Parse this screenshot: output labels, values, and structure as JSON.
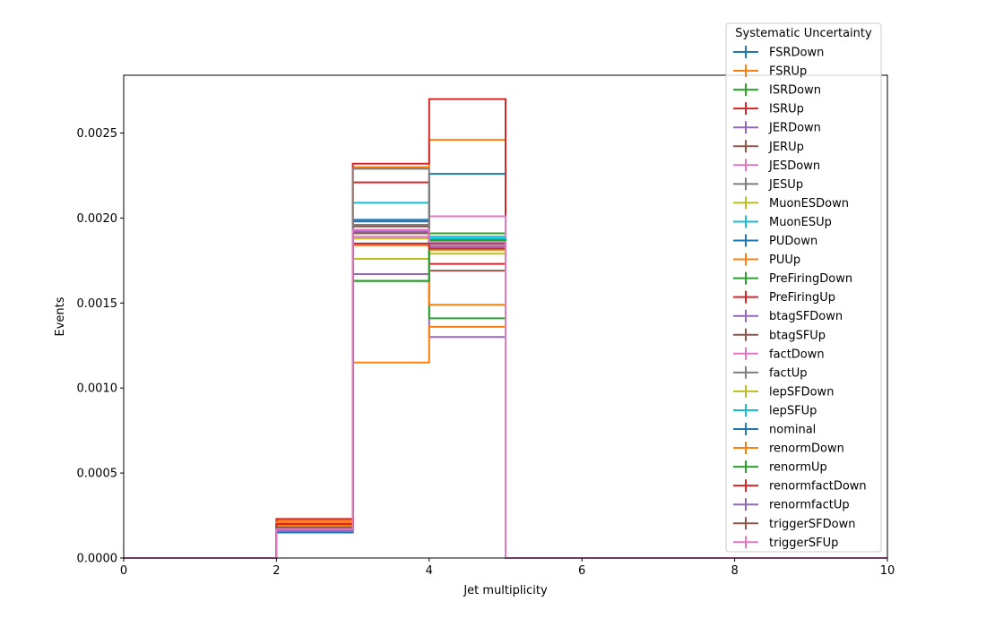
{
  "chart_data": {
    "type": "step-histogram",
    "xlabel": "Jet multiplicity",
    "ylabel": "Events",
    "xlim": [
      0,
      10
    ],
    "ylim": [
      0,
      0.00284
    ],
    "x_ticks": [
      {
        "value": 0,
        "label": "0"
      },
      {
        "value": 2,
        "label": "2"
      },
      {
        "value": 4,
        "label": "4"
      },
      {
        "value": 6,
        "label": "6"
      },
      {
        "value": 8,
        "label": "8"
      },
      {
        "value": 10,
        "label": "10"
      }
    ],
    "y_ticks": [
      {
        "value": 0,
        "label": "0.0000"
      },
      {
        "value": 0.0005,
        "label": "0.0005"
      },
      {
        "value": 0.001,
        "label": "0.0010"
      },
      {
        "value": 0.0015,
        "label": "0.0015"
      },
      {
        "value": 0.002,
        "label": "0.0020"
      },
      {
        "value": 0.0025,
        "label": "0.0025"
      }
    ],
    "bin_edges": [
      0,
      1,
      2,
      3,
      4,
      5,
      6,
      7,
      8,
      9,
      10
    ],
    "grid": false,
    "legend_title": "Systematic Uncertainty",
    "legend_position": "top-right",
    "series": [
      {
        "name": "FSRDown",
        "color": "#1f77b4",
        "values": [
          0,
          0,
          0.00015,
          0.00199,
          0.00226,
          0,
          0,
          0,
          0,
          0
        ]
      },
      {
        "name": "FSRUp",
        "color": "#ff7f0e",
        "values": [
          0,
          0,
          0.00022,
          0.0023,
          0.00246,
          0,
          0,
          0,
          0,
          0
        ]
      },
      {
        "name": "ISRDown",
        "color": "#2ca02c",
        "values": [
          0,
          0,
          0.0002,
          0.00163,
          0.00191,
          0,
          0,
          0,
          0,
          0
        ]
      },
      {
        "name": "ISRUp",
        "color": "#d62728",
        "values": [
          0,
          0,
          0.00023,
          0.00232,
          0.0027,
          0,
          0,
          0,
          0,
          0
        ]
      },
      {
        "name": "JERDown",
        "color": "#9467bd",
        "values": [
          0,
          0,
          0.00017,
          0.00167,
          0.0013,
          0,
          0,
          0,
          0,
          0
        ]
      },
      {
        "name": "JERUp",
        "color": "#8c564b",
        "values": [
          0,
          0,
          0.00018,
          0.00193,
          0.00169,
          0,
          0,
          0,
          0,
          0
        ]
      },
      {
        "name": "JESDown",
        "color": "#e377c2",
        "values": [
          0,
          0,
          0.00016,
          0.00189,
          0.00184,
          0,
          0,
          0,
          0,
          0
        ]
      },
      {
        "name": "JESUp",
        "color": "#7f7f7f",
        "values": [
          0,
          0,
          0.00019,
          0.00196,
          0.00187,
          0,
          0,
          0,
          0,
          0
        ]
      },
      {
        "name": "MuonESDown",
        "color": "#bcbd22",
        "values": [
          0,
          0,
          0.00018,
          0.00176,
          0.00179,
          0,
          0,
          0,
          0,
          0
        ]
      },
      {
        "name": "MuonESUp",
        "color": "#17becf",
        "values": [
          0,
          0,
          0.0002,
          0.00209,
          0.00189,
          0,
          0,
          0,
          0,
          0
        ]
      },
      {
        "name": "PUDown",
        "color": "#1f77b4",
        "values": [
          0,
          0,
          0.00017,
          0.00198,
          0.00187,
          0,
          0,
          0,
          0,
          0
        ]
      },
      {
        "name": "PUUp",
        "color": "#ff7f0e",
        "values": [
          0,
          0,
          0.00021,
          0.00115,
          0.00136,
          0,
          0,
          0,
          0,
          0
        ]
      },
      {
        "name": "PreFiringDown",
        "color": "#2ca02c",
        "values": [
          0,
          0,
          0.00017,
          0.00163,
          0.00141,
          0,
          0,
          0,
          0,
          0
        ]
      },
      {
        "name": "PreFiringUp",
        "color": "#d62728",
        "values": [
          0,
          0,
          0.0002,
          0.00221,
          0.00173,
          0,
          0,
          0,
          0,
          0
        ]
      },
      {
        "name": "btagSFDown",
        "color": "#9467bd",
        "values": [
          0,
          0,
          0.00016,
          0.00184,
          0.00183,
          0,
          0,
          0,
          0,
          0
        ]
      },
      {
        "name": "btagSFUp",
        "color": "#8c564b",
        "values": [
          0,
          0,
          0.00019,
          0.00195,
          0.00186,
          0,
          0,
          0,
          0,
          0
        ]
      },
      {
        "name": "factDown",
        "color": "#e377c2",
        "values": [
          0,
          0,
          0.00017,
          0.00192,
          0.00201,
          0,
          0,
          0,
          0,
          0
        ]
      },
      {
        "name": "factUp",
        "color": "#7f7f7f",
        "values": [
          0,
          0,
          0.00018,
          0.00229,
          0.00185,
          0,
          0,
          0,
          0,
          0
        ]
      },
      {
        "name": "lepSFDown",
        "color": "#bcbd22",
        "values": [
          0,
          0,
          0.00018,
          0.00188,
          0.00181,
          0,
          0,
          0,
          0,
          0
        ]
      },
      {
        "name": "lepSFUp",
        "color": "#17becf",
        "values": [
          0,
          0,
          0.00019,
          0.00185,
          0.00188,
          0,
          0,
          0,
          0,
          0
        ]
      },
      {
        "name": "nominal",
        "color": "#1f77b4",
        "values": [
          0,
          0,
          0.00018,
          0.00192,
          0.00186,
          0,
          0,
          0,
          0,
          0
        ]
      },
      {
        "name": "renormDown",
        "color": "#ff7f0e",
        "values": [
          0,
          0,
          0.00019,
          0.00184,
          0.00149,
          0,
          0,
          0,
          0,
          0
        ]
      },
      {
        "name": "renormUp",
        "color": "#2ca02c",
        "values": [
          0,
          0,
          0.00017,
          0.00163,
          0.00187,
          0,
          0,
          0,
          0,
          0
        ]
      },
      {
        "name": "renormfactDown",
        "color": "#d62728",
        "values": [
          0,
          0,
          0.0002,
          0.00185,
          0.00182,
          0,
          0,
          0,
          0,
          0
        ]
      },
      {
        "name": "renormfactUp",
        "color": "#9467bd",
        "values": [
          0,
          0,
          0.00016,
          0.00192,
          0.00185,
          0,
          0,
          0,
          0,
          0
        ]
      },
      {
        "name": "triggerSFDown",
        "color": "#8c564b",
        "values": [
          0,
          0,
          0.00018,
          0.00191,
          0.00185,
          0,
          0,
          0,
          0,
          0
        ]
      },
      {
        "name": "triggerSFUp",
        "color": "#e377c2",
        "values": [
          0,
          0,
          0.00017,
          0.00193,
          0.00186,
          0,
          0,
          0,
          0,
          0
        ]
      }
    ]
  }
}
